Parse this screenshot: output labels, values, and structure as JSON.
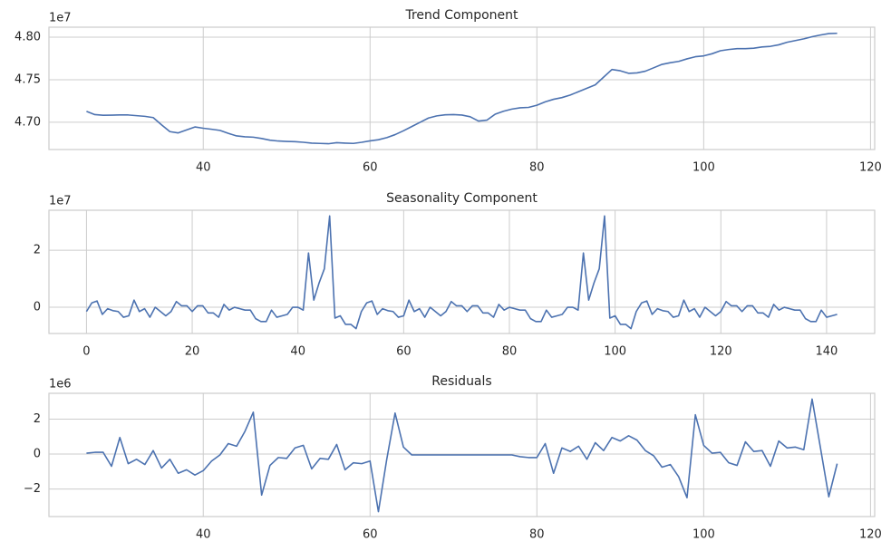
{
  "chart_data": [
    {
      "type": "line",
      "title": "Trend Component",
      "offset_label": "1e7",
      "color": "#4c72b0",
      "grid": true,
      "x": [
        26,
        27,
        28,
        29,
        30,
        31,
        32,
        33,
        34,
        35,
        36,
        37,
        38,
        39,
        40,
        41,
        42,
        43,
        44,
        45,
        46,
        47,
        48,
        49,
        50,
        51,
        52,
        53,
        54,
        55,
        56,
        57,
        58,
        59,
        60,
        61,
        62,
        63,
        64,
        65,
        66,
        67,
        68,
        69,
        70,
        71,
        72,
        73,
        74,
        75,
        76,
        77,
        78,
        79,
        80,
        81,
        82,
        83,
        84,
        85,
        86,
        87,
        88,
        89,
        90,
        91,
        92,
        93,
        94,
        95,
        96,
        97,
        98,
        99,
        100,
        101,
        102,
        103,
        104,
        105,
        106,
        107,
        108,
        109,
        110,
        111,
        112,
        113,
        114,
        115,
        116
      ],
      "values": [
        4.7128,
        4.709,
        4.7083,
        4.7084,
        4.7086,
        4.7086,
        4.7078,
        4.707,
        4.7055,
        4.697,
        4.689,
        4.6875,
        4.691,
        4.6945,
        4.693,
        4.6918,
        4.6905,
        4.687,
        4.684,
        4.683,
        4.6825,
        4.681,
        4.679,
        4.678,
        4.6775,
        4.6772,
        4.6765,
        4.6755,
        4.6752,
        4.6748,
        4.676,
        4.6755,
        4.6752,
        4.6765,
        4.6782,
        4.6795,
        4.682,
        4.6855,
        4.69,
        4.695,
        4.7,
        4.705,
        4.7075,
        4.7088,
        4.709,
        4.7085,
        4.7065,
        4.7015,
        4.7025,
        4.7095,
        4.713,
        4.7155,
        4.717,
        4.7175,
        4.72,
        4.724,
        4.727,
        4.729,
        4.732,
        4.736,
        4.74,
        4.744,
        4.753,
        4.762,
        4.7605,
        4.7575,
        4.758,
        4.76,
        4.764,
        4.768,
        4.77,
        4.7715,
        4.7745,
        4.777,
        4.778,
        4.7805,
        4.784,
        4.7855,
        4.7865,
        4.7865,
        4.787,
        4.7885,
        4.7892,
        4.791,
        4.794,
        4.796,
        4.798,
        4.8005,
        4.8025,
        4.8042,
        4.8045
      ],
      "xlim": [
        21.5,
        120.5
      ],
      "ylim": [
        4.668,
        4.8117
      ],
      "xticks": [
        40,
        60,
        80,
        100,
        120
      ],
      "yticks": [
        {
          "value": 4.7,
          "label": "4.70"
        },
        4.75,
        {
          "value": 4.8,
          "label": "4.80"
        }
      ]
    },
    {
      "type": "line",
      "title": "Seasonality Component",
      "offset_label": "1e7",
      "color": "#4c72b0",
      "grid": true,
      "x": [
        0,
        1,
        2,
        3,
        4,
        5,
        6,
        7,
        8,
        9,
        10,
        11,
        12,
        13,
        14,
        15,
        16,
        17,
        18,
        19,
        20,
        21,
        22,
        23,
        24,
        25,
        26,
        27,
        28,
        29,
        30,
        31,
        32,
        33,
        34,
        35,
        36,
        37,
        38,
        39,
        40,
        41,
        42,
        43,
        44,
        45,
        46,
        47,
        48,
        49,
        50,
        51,
        52,
        53,
        54,
        55,
        56,
        57,
        58,
        59,
        60,
        61,
        62,
        63,
        64,
        65,
        66,
        67,
        68,
        69,
        70,
        71,
        72,
        73,
        74,
        75,
        76,
        77,
        78,
        79,
        80,
        81,
        82,
        83,
        84,
        85,
        86,
        87,
        88,
        89,
        90,
        91,
        92,
        93,
        94,
        95,
        96,
        97,
        98,
        99,
        100,
        101,
        102,
        103,
        104,
        105,
        106,
        107,
        108,
        109,
        110,
        111,
        112,
        113,
        114,
        115,
        116,
        117,
        118,
        119,
        120,
        121,
        122,
        123,
        124,
        125,
        126,
        127,
        128,
        129,
        130,
        131,
        132,
        133,
        134,
        135,
        136,
        137,
        138,
        139,
        140,
        141,
        142
      ],
      "values": [
        -0.15,
        0.15,
        0.22,
        -0.25,
        -0.05,
        -0.12,
        -0.15,
        -0.35,
        -0.3,
        0.25,
        -0.15,
        -0.05,
        -0.35,
        0.0,
        -0.15,
        -0.3,
        -0.15,
        0.2,
        0.05,
        0.05,
        -0.15,
        0.05,
        0.05,
        -0.2,
        -0.2,
        -0.35,
        0.1,
        -0.1,
        0.0,
        -0.05,
        -0.1,
        -0.1,
        -0.4,
        -0.5,
        -0.5,
        -0.1,
        -0.35,
        -0.3,
        -0.25,
        0.0,
        0.0,
        -0.1,
        1.9,
        0.25,
        0.85,
        1.35,
        3.2,
        -0.38,
        -0.3,
        -0.6,
        -0.6,
        -0.75,
        -0.15,
        0.15,
        0.22,
        -0.25,
        -0.05,
        -0.12,
        -0.15,
        -0.35,
        -0.3,
        0.25,
        -0.15,
        -0.05,
        -0.35,
        0.0,
        -0.15,
        -0.3,
        -0.15,
        0.2,
        0.05,
        0.05,
        -0.15,
        0.05,
        0.05,
        -0.2,
        -0.2,
        -0.35,
        0.1,
        -0.1,
        0.0,
        -0.05,
        -0.1,
        -0.1,
        -0.4,
        -0.5,
        -0.5,
        -0.1,
        -0.35,
        -0.3,
        -0.25,
        0.0,
        0.0,
        -0.1,
        1.9,
        0.25,
        0.85,
        1.35,
        3.2,
        -0.38,
        -0.3,
        -0.6,
        -0.6,
        -0.75,
        -0.15,
        0.15,
        0.22,
        -0.25,
        -0.05,
        -0.12,
        -0.15,
        -0.35,
        -0.3,
        0.25,
        -0.15,
        -0.05,
        -0.35,
        0.0,
        -0.15,
        -0.3,
        -0.15,
        0.2,
        0.05,
        0.05,
        -0.15,
        0.05,
        0.05,
        -0.2,
        -0.2,
        -0.35,
        0.1,
        -0.1,
        0.0,
        -0.05,
        -0.1,
        -0.1,
        -0.4,
        -0.5,
        -0.5,
        -0.1,
        -0.35,
        -0.3,
        -0.25
      ],
      "xlim": [
        -7.1,
        149.1
      ],
      "ylim": [
        -0.92,
        3.4
      ],
      "xticks": [
        0,
        20,
        40,
        60,
        80,
        100,
        120,
        140
      ],
      "yticks": [
        0,
        2
      ]
    },
    {
      "type": "line",
      "title": "Residuals",
      "offset_label": "1e6",
      "color": "#4c72b0",
      "grid": true,
      "x": [
        26,
        27,
        28,
        29,
        30,
        31,
        32,
        33,
        34,
        35,
        36,
        37,
        38,
        39,
        40,
        41,
        42,
        43,
        44,
        45,
        46,
        47,
        48,
        49,
        50,
        51,
        52,
        53,
        54,
        55,
        56,
        57,
        58,
        59,
        60,
        61,
        62,
        63,
        64,
        65,
        66,
        67,
        68,
        69,
        70,
        71,
        72,
        73,
        74,
        75,
        76,
        77,
        78,
        79,
        80,
        81,
        82,
        83,
        84,
        85,
        86,
        87,
        88,
        89,
        90,
        91,
        92,
        93,
        94,
        95,
        96,
        97,
        98,
        99,
        100,
        101,
        102,
        103,
        104,
        105,
        106,
        107,
        108,
        109,
        110,
        111,
        112,
        113,
        114,
        115,
        116
      ],
      "values": [
        0.05,
        0.1,
        0.1,
        -0.7,
        0.95,
        -0.55,
        -0.3,
        -0.6,
        0.2,
        -0.8,
        -0.3,
        -1.1,
        -0.9,
        -1.2,
        -0.95,
        -0.4,
        -0.05,
        0.6,
        0.45,
        1.3,
        2.4,
        -2.35,
        -0.65,
        -0.2,
        -0.25,
        0.35,
        0.5,
        -0.85,
        -0.25,
        -0.3,
        0.55,
        -0.9,
        -0.5,
        -0.55,
        -0.4,
        -3.3,
        -0.3,
        2.35,
        0.4,
        -0.05,
        -0.05,
        -0.05,
        -0.05,
        -0.05,
        -0.05,
        -0.05,
        -0.05,
        -0.05,
        -0.05,
        -0.05,
        -0.05,
        -0.05,
        -0.15,
        -0.2,
        -0.2,
        0.6,
        -1.1,
        0.35,
        0.15,
        0.45,
        -0.3,
        0.65,
        0.2,
        0.95,
        0.75,
        1.05,
        0.8,
        0.2,
        -0.1,
        -0.75,
        -0.6,
        -1.3,
        -2.5,
        2.25,
        0.5,
        0.05,
        0.1,
        -0.5,
        -0.65,
        0.7,
        0.15,
        0.2,
        -0.7,
        0.75,
        0.35,
        0.4,
        0.25,
        3.15,
        0.35,
        -2.45,
        -0.55
      ],
      "xlim": [
        21.5,
        120.5
      ],
      "ylim": [
        -3.58,
        3.48
      ],
      "xticks": [
        40,
        60,
        80,
        100,
        120
      ],
      "yticks": [
        {
          "value": -2,
          "label": "−2"
        },
        0,
        2
      ]
    }
  ]
}
